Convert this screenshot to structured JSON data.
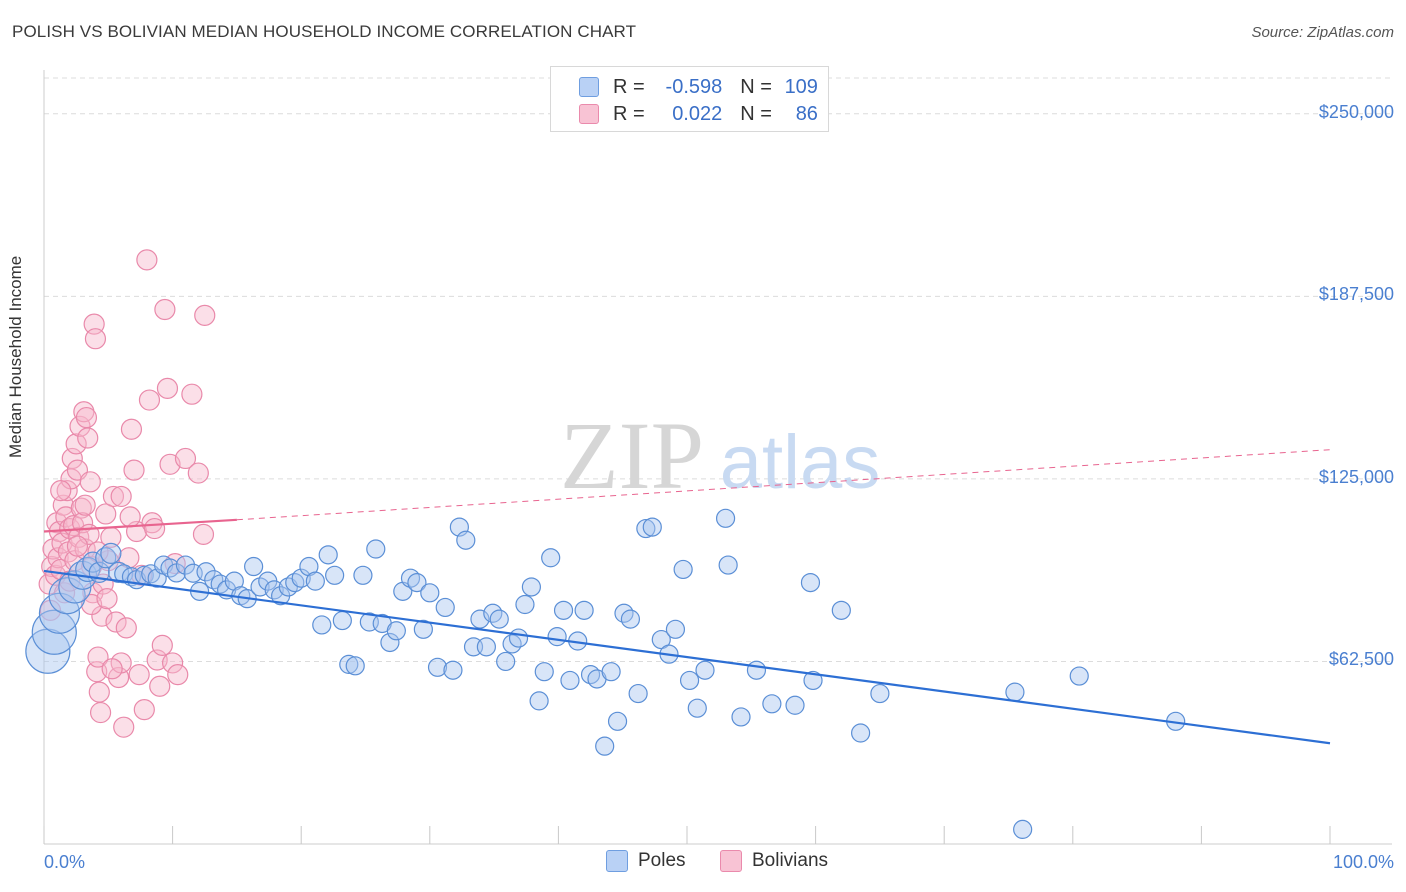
{
  "title": "POLISH VS BOLIVIAN MEDIAN HOUSEHOLD INCOME CORRELATION CHART",
  "source": "Source: ZipAtlas.com",
  "watermark": {
    "zip": "ZIP",
    "atlas": "atlas"
  },
  "legend": {
    "rows": [
      {
        "r_label": "R =",
        "r_value": "-0.598",
        "n_label": "N =",
        "n_value": "109",
        "color": "#6f9ee0"
      },
      {
        "r_label": "R =",
        "r_value": "0.022",
        "n_label": "N =",
        "n_value": "86",
        "color": "#ea8aac"
      }
    ]
  },
  "bottom_legend": {
    "poles": "Poles",
    "bolivians": "Bolivians"
  },
  "colors": {
    "poles_fill": "#a9c6f0",
    "poles_stroke": "#5b8fd6",
    "poles_line": "#2d6fd4",
    "bolivians_fill": "#f6b8cc",
    "bolivians_stroke": "#e989aa",
    "bolivians_line": "#e8648f",
    "tick_text": "#4a7fd0",
    "grid": "#dcdcdc"
  },
  "chart_data": {
    "type": "scatter",
    "title": "POLISH VS BOLIVIAN MEDIAN HOUSEHOLD INCOME CORRELATION CHART",
    "xlabel": "",
    "ylabel": "Median Household Income",
    "xlim": [
      0,
      100
    ],
    "ylim": [
      0,
      265000
    ],
    "x_tick_labels": [
      "0.0%",
      "100.0%"
    ],
    "y_ticks": [
      62500,
      125000,
      187500,
      250000
    ],
    "y_tick_labels": [
      "$62,500",
      "$125,000",
      "$187,500",
      "$250,000"
    ],
    "grid": true,
    "legend_position": "top-center",
    "series": [
      {
        "name": "Poles",
        "r": -0.598,
        "n": 109,
        "trend": {
          "x": [
            0,
            100
          ],
          "y": [
            93500,
            34500
          ],
          "style": "solid"
        },
        "points": [
          [
            0.3,
            66000,
            22
          ],
          [
            0.8,
            72500,
            22
          ],
          [
            1.2,
            79000,
            20
          ],
          [
            1.8,
            85000,
            18
          ],
          [
            2.4,
            88000,
            16
          ],
          [
            3.0,
            92000,
            14
          ],
          [
            3.4,
            94000,
            12
          ],
          [
            3.8,
            96500,
            10
          ],
          [
            4.3,
            93000,
            10
          ],
          [
            4.8,
            98000,
            10
          ],
          [
            5.2,
            99500,
            10
          ],
          [
            5.8,
            93000,
            10
          ],
          [
            6.2,
            92500,
            9
          ],
          [
            6.8,
            91500,
            9
          ],
          [
            7.2,
            90500,
            9
          ],
          [
            7.8,
            92000,
            9
          ],
          [
            8.3,
            92500,
            9
          ],
          [
            8.8,
            91000,
            9
          ],
          [
            9.3,
            95500,
            9
          ],
          [
            9.8,
            94500,
            9
          ],
          [
            10.3,
            92800,
            9
          ],
          [
            11.0,
            95500,
            9
          ],
          [
            11.6,
            92700,
            9
          ],
          [
            12.1,
            86500,
            9
          ],
          [
            12.6,
            93200,
            9
          ],
          [
            13.2,
            90500,
            9
          ],
          [
            13.7,
            89000,
            9
          ],
          [
            14.2,
            87000,
            9
          ],
          [
            14.8,
            90000,
            9
          ],
          [
            15.3,
            85000,
            9
          ],
          [
            15.8,
            84000,
            9
          ],
          [
            16.3,
            95000,
            9
          ],
          [
            16.8,
            88000,
            9
          ],
          [
            17.4,
            90000,
            9
          ],
          [
            17.9,
            87000,
            9
          ],
          [
            18.4,
            85000,
            9
          ],
          [
            19.0,
            88000,
            9
          ],
          [
            19.5,
            89500,
            9
          ],
          [
            20.0,
            91000,
            9
          ],
          [
            20.6,
            95000,
            9
          ],
          [
            21.1,
            90000,
            9
          ],
          [
            21.6,
            75000,
            9
          ],
          [
            22.1,
            99000,
            9
          ],
          [
            22.6,
            92000,
            9
          ],
          [
            23.2,
            76500,
            9
          ],
          [
            23.7,
            61500,
            9
          ],
          [
            24.2,
            61000,
            9
          ],
          [
            24.8,
            92000,
            9
          ],
          [
            25.3,
            76000,
            9
          ],
          [
            25.8,
            101000,
            9
          ],
          [
            26.3,
            75500,
            9
          ],
          [
            26.9,
            69000,
            9
          ],
          [
            27.4,
            73000,
            9
          ],
          [
            27.9,
            86500,
            9
          ],
          [
            28.5,
            91000,
            9
          ],
          [
            29.0,
            89500,
            9
          ],
          [
            29.5,
            73500,
            9
          ],
          [
            30.0,
            86000,
            9
          ],
          [
            30.6,
            60500,
            9
          ],
          [
            31.2,
            81000,
            9
          ],
          [
            31.8,
            59500,
            9
          ],
          [
            32.3,
            108500,
            9
          ],
          [
            32.8,
            104000,
            9
          ],
          [
            33.4,
            67500,
            9
          ],
          [
            33.9,
            77000,
            9
          ],
          [
            34.4,
            67500,
            9
          ],
          [
            34.9,
            79000,
            9
          ],
          [
            35.4,
            77000,
            9
          ],
          [
            35.9,
            62500,
            9
          ],
          [
            36.4,
            68500,
            9
          ],
          [
            36.9,
            70500,
            9
          ],
          [
            37.4,
            82000,
            9
          ],
          [
            37.9,
            88000,
            9
          ],
          [
            38.5,
            49000,
            9
          ],
          [
            38.9,
            59000,
            9
          ],
          [
            39.4,
            98000,
            9
          ],
          [
            39.9,
            71000,
            9
          ],
          [
            40.4,
            80000,
            9
          ],
          [
            40.9,
            56000,
            9
          ],
          [
            41.5,
            69500,
            9
          ],
          [
            42.0,
            80000,
            9
          ],
          [
            42.5,
            58000,
            9
          ],
          [
            43.0,
            56500,
            9
          ],
          [
            43.6,
            33500,
            9
          ],
          [
            44.1,
            59000,
            9
          ],
          [
            44.6,
            42000,
            9
          ],
          [
            45.1,
            79000,
            9
          ],
          [
            45.6,
            77000,
            9
          ],
          [
            46.2,
            51500,
            9
          ],
          [
            46.8,
            108000,
            9
          ],
          [
            47.3,
            108500,
            9
          ],
          [
            48.0,
            70000,
            9
          ],
          [
            48.6,
            65000,
            9
          ],
          [
            49.1,
            73500,
            9
          ],
          [
            49.7,
            94000,
            9
          ],
          [
            50.2,
            56000,
            9
          ],
          [
            50.8,
            46500,
            9
          ],
          [
            51.4,
            59500,
            9
          ],
          [
            53.0,
            111500,
            9
          ],
          [
            53.2,
            95500,
            9
          ],
          [
            54.2,
            43500,
            9
          ],
          [
            55.4,
            59500,
            9
          ],
          [
            56.6,
            48000,
            9
          ],
          [
            58.4,
            47500,
            9
          ],
          [
            59.6,
            89500,
            9
          ],
          [
            59.8,
            56000,
            9
          ],
          [
            62.0,
            80000,
            9
          ],
          [
            63.5,
            38000,
            9
          ],
          [
            65.0,
            51500,
            9
          ],
          [
            75.5,
            52000,
            9
          ],
          [
            76.1,
            5000,
            9
          ],
          [
            80.5,
            57500,
            9
          ],
          [
            88.0,
            42000,
            9
          ]
        ]
      },
      {
        "name": "Bolivians",
        "r": 0.022,
        "n": 86,
        "trend": {
          "x": [
            0,
            15,
            100
          ],
          "y": [
            107000,
            111000,
            135000
          ],
          "solid_until_x": 15
        },
        "points": [
          [
            0.4,
            89000,
            10
          ],
          [
            0.6,
            95000,
            10
          ],
          [
            0.7,
            101000,
            10
          ],
          [
            0.9,
            92000,
            10
          ],
          [
            1.0,
            110000,
            10
          ],
          [
            1.1,
            98000,
            10
          ],
          [
            1.2,
            107000,
            10
          ],
          [
            1.3,
            94000,
            10
          ],
          [
            1.4,
            103000,
            10
          ],
          [
            1.5,
            116000,
            10
          ],
          [
            1.6,
            86000,
            10
          ],
          [
            1.7,
            112000,
            10
          ],
          [
            1.8,
            121000,
            10
          ],
          [
            1.9,
            100000,
            10
          ],
          [
            2.0,
            108000,
            10
          ],
          [
            2.1,
            125000,
            10
          ],
          [
            2.2,
            132000,
            10
          ],
          [
            2.3,
            109000,
            10
          ],
          [
            2.4,
            97000,
            10
          ],
          [
            2.5,
            137000,
            10
          ],
          [
            2.6,
            128000,
            10
          ],
          [
            2.7,
            105000,
            10
          ],
          [
            2.8,
            143000,
            10
          ],
          [
            2.9,
            115000,
            10
          ],
          [
            3.0,
            110000,
            10
          ],
          [
            3.1,
            148000,
            10
          ],
          [
            3.2,
            101000,
            10
          ],
          [
            3.3,
            146000,
            10
          ],
          [
            3.4,
            139000,
            10
          ],
          [
            3.5,
            106000,
            10
          ],
          [
            3.6,
            124000,
            10
          ],
          [
            3.7,
            95000,
            10
          ],
          [
            3.8,
            86000,
            10
          ],
          [
            3.9,
            178000,
            10
          ],
          [
            4.0,
            173000,
            10
          ],
          [
            4.1,
            59000,
            10
          ],
          [
            4.2,
            64000,
            10
          ],
          [
            4.3,
            52000,
            10
          ],
          [
            4.4,
            45000,
            10
          ],
          [
            4.5,
            78000,
            10
          ],
          [
            4.6,
            89000,
            10
          ],
          [
            4.8,
            113000,
            10
          ],
          [
            5.0,
            97000,
            10
          ],
          [
            5.2,
            105000,
            10
          ],
          [
            5.4,
            119000,
            10
          ],
          [
            5.6,
            76000,
            10
          ],
          [
            5.8,
            57000,
            10
          ],
          [
            6.0,
            62000,
            10
          ],
          [
            6.2,
            40000,
            10
          ],
          [
            6.4,
            74000,
            10
          ],
          [
            6.6,
            98000,
            10
          ],
          [
            6.8,
            142000,
            10
          ],
          [
            7.0,
            128000,
            10
          ],
          [
            7.2,
            107000,
            10
          ],
          [
            7.4,
            58000,
            10
          ],
          [
            7.6,
            92000,
            10
          ],
          [
            7.8,
            46000,
            10
          ],
          [
            8.0,
            200000,
            10
          ],
          [
            8.2,
            152000,
            10
          ],
          [
            8.4,
            110000,
            10
          ],
          [
            8.6,
            108000,
            10
          ],
          [
            8.8,
            63000,
            10
          ],
          [
            9.0,
            54000,
            10
          ],
          [
            9.2,
            68000,
            10
          ],
          [
            9.4,
            183000,
            10
          ],
          [
            9.6,
            156000,
            10
          ],
          [
            9.8,
            130000,
            10
          ],
          [
            10.0,
            62000,
            10
          ],
          [
            10.2,
            96000,
            10
          ],
          [
            10.4,
            58000,
            10
          ],
          [
            11.0,
            132000,
            10
          ],
          [
            11.5,
            154000,
            10
          ],
          [
            12.0,
            127000,
            10
          ],
          [
            12.4,
            106000,
            10
          ],
          [
            12.5,
            181000,
            10
          ],
          [
            0.5,
            80000,
            10
          ],
          [
            1.3,
            121000,
            10
          ],
          [
            2.0,
            90000,
            10
          ],
          [
            2.6,
            102000,
            10
          ],
          [
            3.2,
            116000,
            10
          ],
          [
            3.7,
            82000,
            10
          ],
          [
            4.2,
            100000,
            10
          ],
          [
            4.9,
            84000,
            10
          ],
          [
            5.3,
            60000,
            10
          ],
          [
            6.0,
            119000,
            10
          ],
          [
            6.7,
            112000,
            10
          ]
        ]
      }
    ]
  }
}
